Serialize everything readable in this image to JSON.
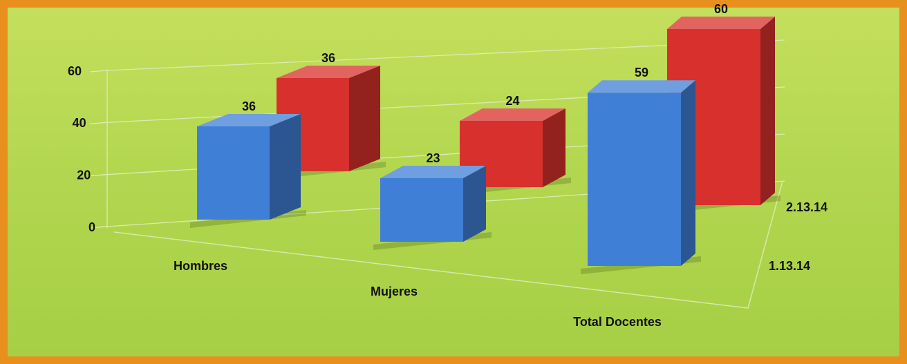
{
  "chart_data": {
    "type": "bar3d",
    "categories": [
      "Hombres",
      "Mujeres",
      "Total Docentes"
    ],
    "series": [
      {
        "name": "1.13.14",
        "color": "#3f7fd6",
        "values": [
          36,
          23,
          59
        ]
      },
      {
        "name": "2.13.14",
        "color": "#d8302c",
        "values": [
          36,
          24,
          60
        ]
      }
    ],
    "ylim": [
      0,
      60
    ],
    "yticks": [
      0,
      20,
      40,
      60
    ],
    "grid": true
  }
}
